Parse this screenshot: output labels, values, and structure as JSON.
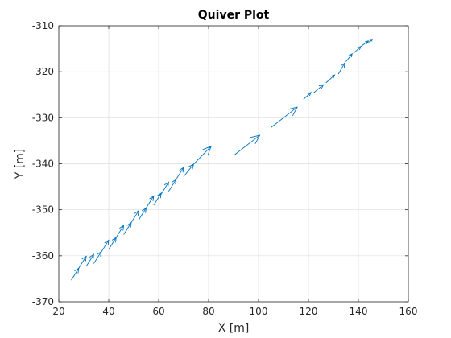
{
  "chart_data": {
    "type": "quiver",
    "title": "Quiver Plot",
    "xlabel": "X [m]",
    "ylabel": "Y [m]",
    "xlim": [
      20,
      160
    ],
    "ylim": [
      -370,
      -310
    ],
    "xticks": [
      20,
      40,
      60,
      80,
      100,
      120,
      140,
      160
    ],
    "yticks": [
      -370,
      -360,
      -350,
      -340,
      -330,
      -320,
      -310
    ],
    "grid": true,
    "color": "#0072BD",
    "arrows": [
      {
        "x": 25,
        "y": -365.3,
        "u": 3.0,
        "v": 2.6
      },
      {
        "x": 28,
        "y": -362.7,
        "u": 3.0,
        "v": 2.6
      },
      {
        "x": 31,
        "y": -362.3,
        "u": 3.0,
        "v": 2.6
      },
      {
        "x": 34,
        "y": -361.7,
        "u": 3.0,
        "v": 2.6
      },
      {
        "x": 37,
        "y": -359.2,
        "u": 3.0,
        "v": 2.6
      },
      {
        "x": 40,
        "y": -358.6,
        "u": 3.0,
        "v": 2.6
      },
      {
        "x": 43,
        "y": -356.0,
        "u": 3.0,
        "v": 2.6
      },
      {
        "x": 46,
        "y": -355.4,
        "u": 3.0,
        "v": 2.6
      },
      {
        "x": 49,
        "y": -352.8,
        "u": 3.0,
        "v": 2.6
      },
      {
        "x": 52,
        "y": -352.2,
        "u": 3.0,
        "v": 2.6
      },
      {
        "x": 55,
        "y": -349.6,
        "u": 3.0,
        "v": 2.6
      },
      {
        "x": 58,
        "y": -349.0,
        "u": 3.0,
        "v": 2.6
      },
      {
        "x": 61,
        "y": -346.6,
        "u": 3.0,
        "v": 2.6
      },
      {
        "x": 64,
        "y": -346.0,
        "u": 3.0,
        "v": 2.6
      },
      {
        "x": 67,
        "y": -343.4,
        "u": 3.0,
        "v": 2.6
      },
      {
        "x": 70,
        "y": -342.8,
        "u": 4.0,
        "v": 2.7
      },
      {
        "x": 74,
        "y": -340.1,
        "u": 7.0,
        "v": 3.9
      },
      {
        "x": 90,
        "y": -338.2,
        "u": 10.5,
        "v": 4.4
      },
      {
        "x": 105,
        "y": -332.1,
        "u": 10.5,
        "v": 4.4
      },
      {
        "x": 118,
        "y": -326.0,
        "u": 3.0,
        "v": 1.5
      },
      {
        "x": 122,
        "y": -324.6,
        "u": 4.0,
        "v": 1.8
      },
      {
        "x": 127,
        "y": -322.4,
        "u": 3.5,
        "v": 1.7
      },
      {
        "x": 132,
        "y": -320.5,
        "u": 2.5,
        "v": 2.4
      },
      {
        "x": 135,
        "y": -317.8,
        "u": 2.5,
        "v": 1.7
      },
      {
        "x": 138,
        "y": -316.0,
        "u": 3.0,
        "v": 1.5
      },
      {
        "x": 141,
        "y": -314.5,
        "u": 3.0,
        "v": 1.2
      },
      {
        "x": 144,
        "y": -313.6,
        "u": 1.5,
        "v": 0.5
      }
    ]
  }
}
